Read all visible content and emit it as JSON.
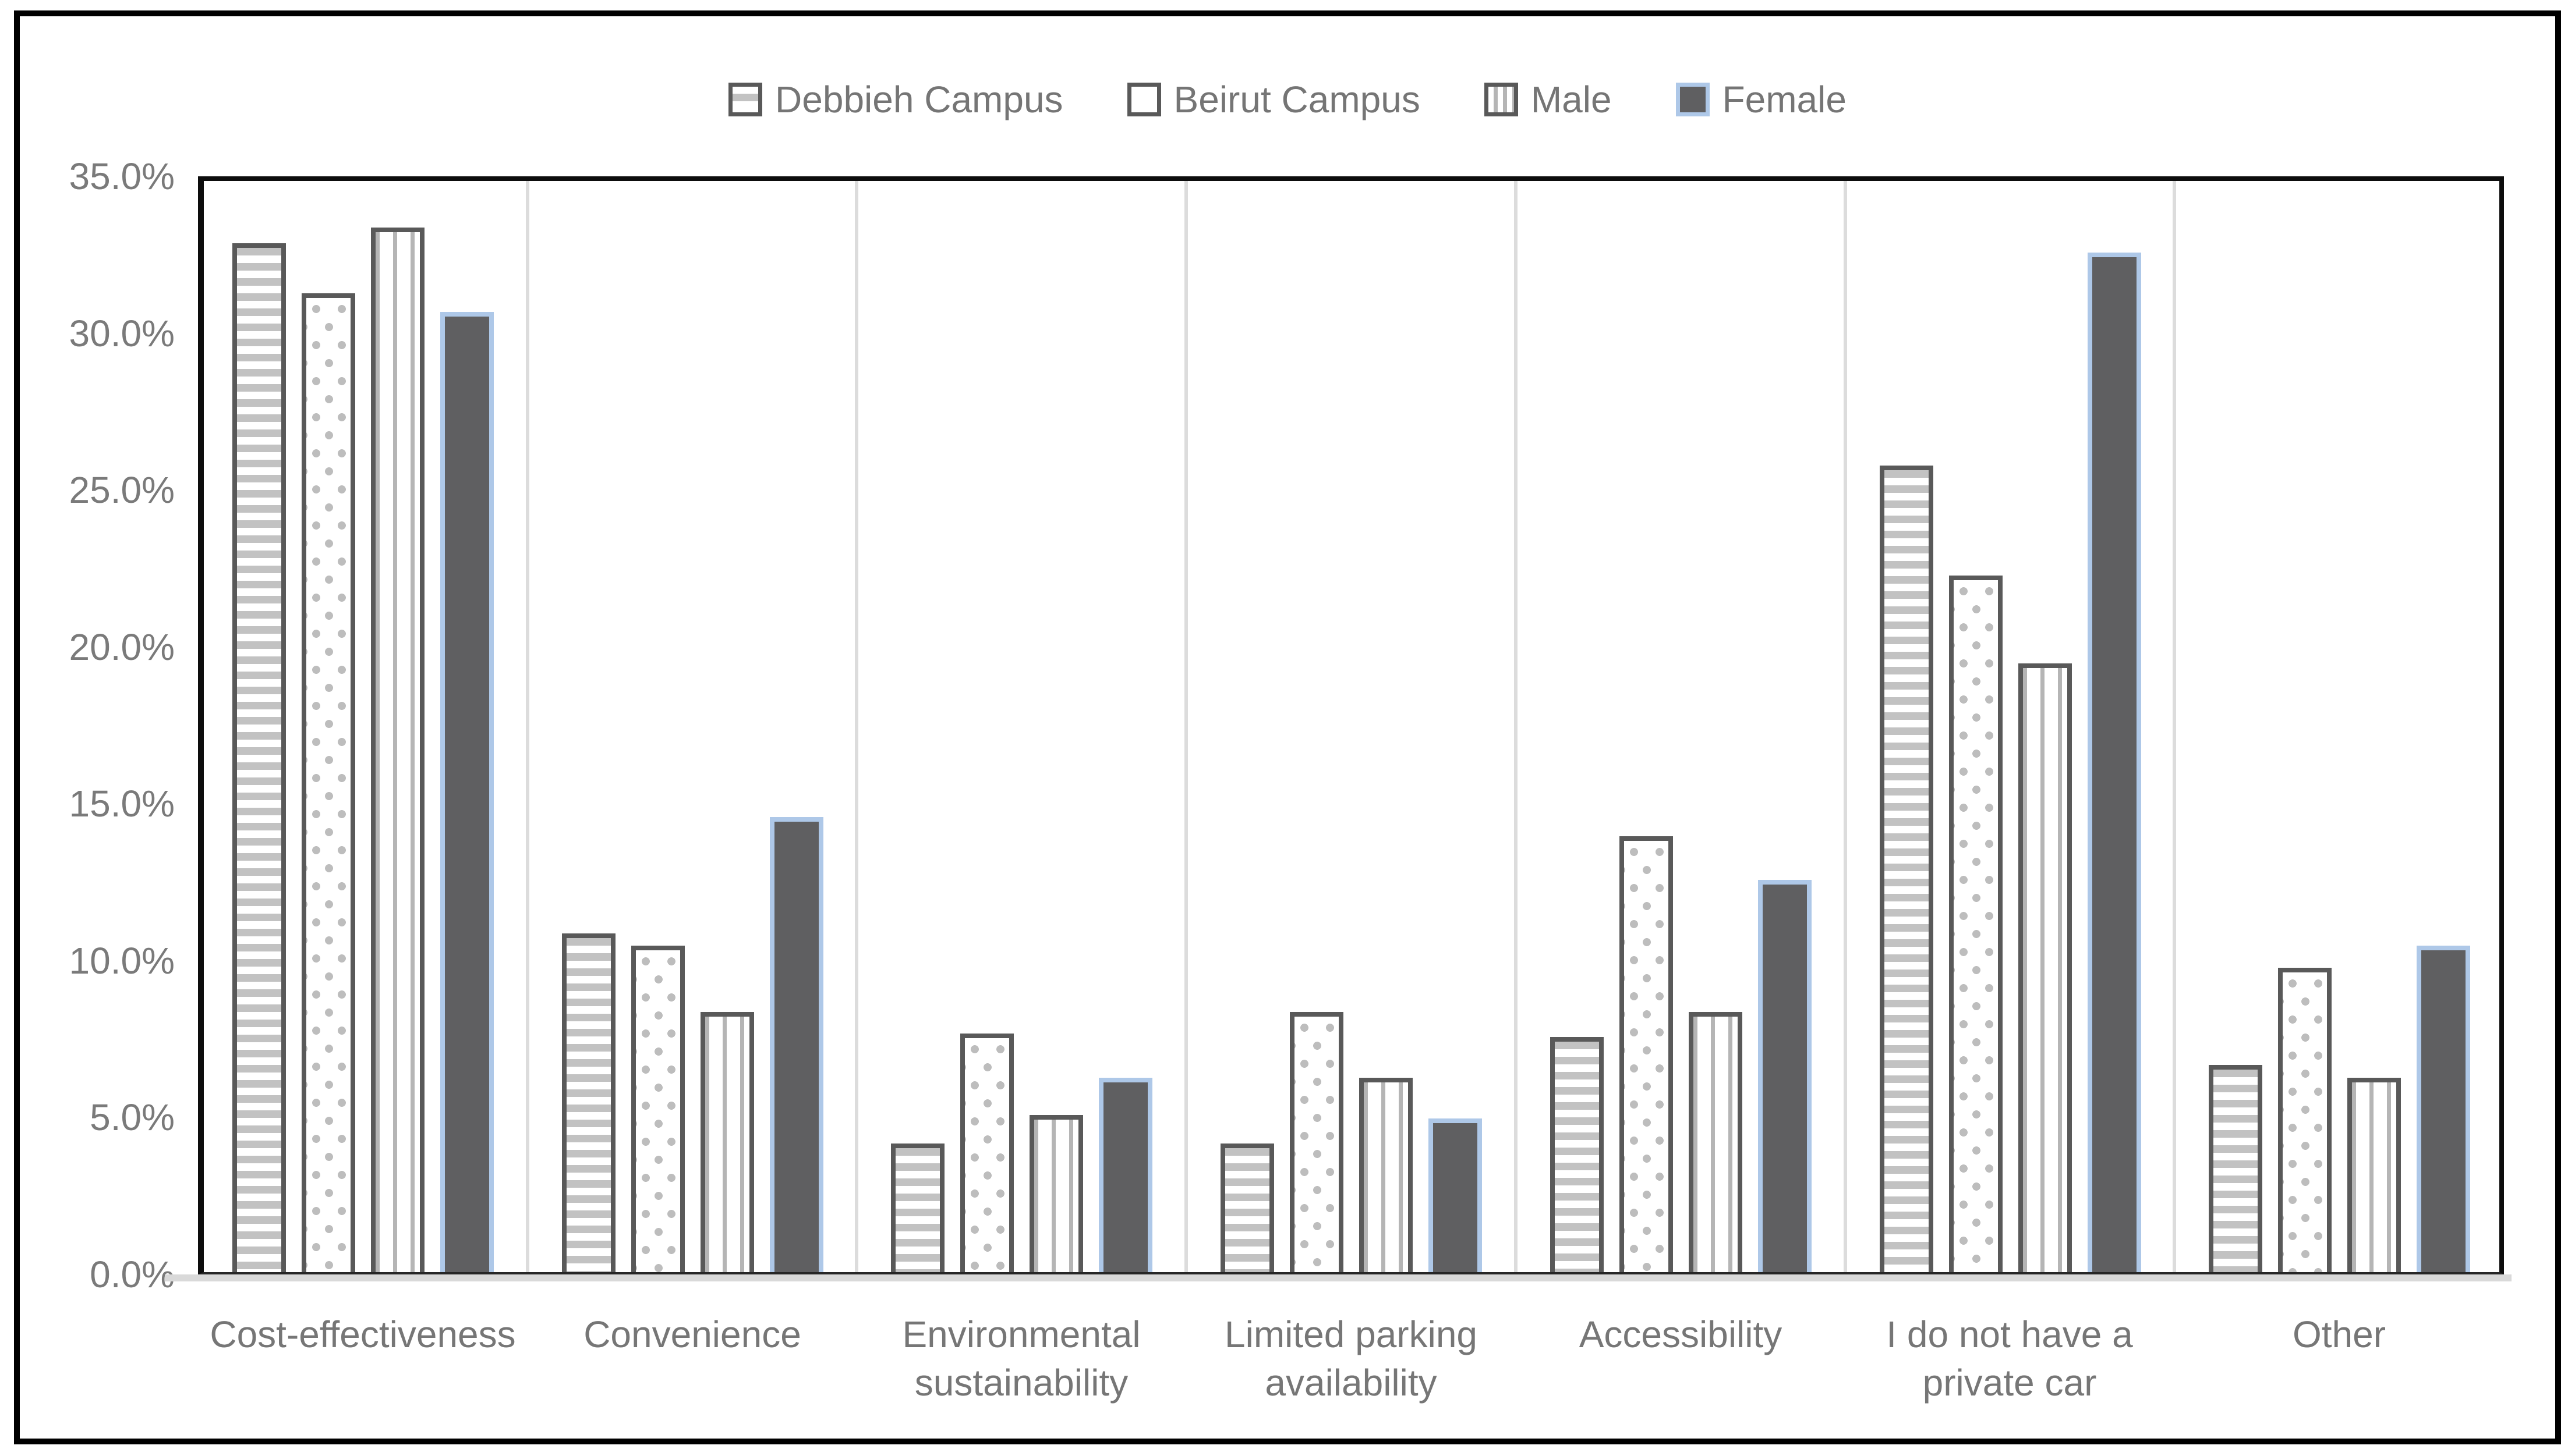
{
  "chart_data": {
    "type": "bar",
    "title": "",
    "categories": [
      "Cost-effectiveness",
      "Convenience",
      "Environmental sustainability",
      "Limited parking availability",
      "Accessibility",
      "I do not have a private car",
      "Other"
    ],
    "series": [
      {
        "name": "Debbieh Campus",
        "pattern": "horizontal-stripes",
        "values": [
          32.8,
          10.8,
          4.1,
          4.1,
          7.5,
          25.7,
          6.6
        ]
      },
      {
        "name": "Beirut Campus",
        "pattern": "dots",
        "values": [
          31.2,
          10.4,
          7.6,
          8.3,
          13.9,
          22.2,
          9.7
        ]
      },
      {
        "name": "Male",
        "pattern": "vertical-stripes",
        "values": [
          33.3,
          8.3,
          5.0,
          6.2,
          8.3,
          19.4,
          6.2
        ]
      },
      {
        "name": "Female",
        "pattern": "solid",
        "values": [
          30.6,
          14.5,
          6.2,
          4.9,
          12.5,
          32.5,
          10.4
        ]
      }
    ],
    "xlabel": "",
    "ylabel": "",
    "ylim": [
      0,
      35
    ],
    "yticks": [
      {
        "value": 0,
        "label": "0.0%"
      },
      {
        "value": 5,
        "label": "5.0%"
      },
      {
        "value": 10,
        "label": "10.0%"
      },
      {
        "value": 15,
        "label": "15.0%"
      },
      {
        "value": 20,
        "label": "20.0%"
      },
      {
        "value": 25,
        "label": "25.0%"
      },
      {
        "value": 30,
        "label": "30.0%"
      },
      {
        "value": 35,
        "label": "35.0%"
      }
    ],
    "legend_position": "top-center",
    "grid": "vertical-category-separators-only"
  },
  "colors": {
    "bar_border_dark": "#595959",
    "female_fill": "#5F5F61",
    "female_border": "#AEC8E8",
    "pattern_gray": "#BFBFBF",
    "separator_gray": "#DCDCDC",
    "axis_band_gray": "#D9D9D9",
    "axis_text_gray": "#7A7A7A",
    "frame_black": "#000000"
  }
}
